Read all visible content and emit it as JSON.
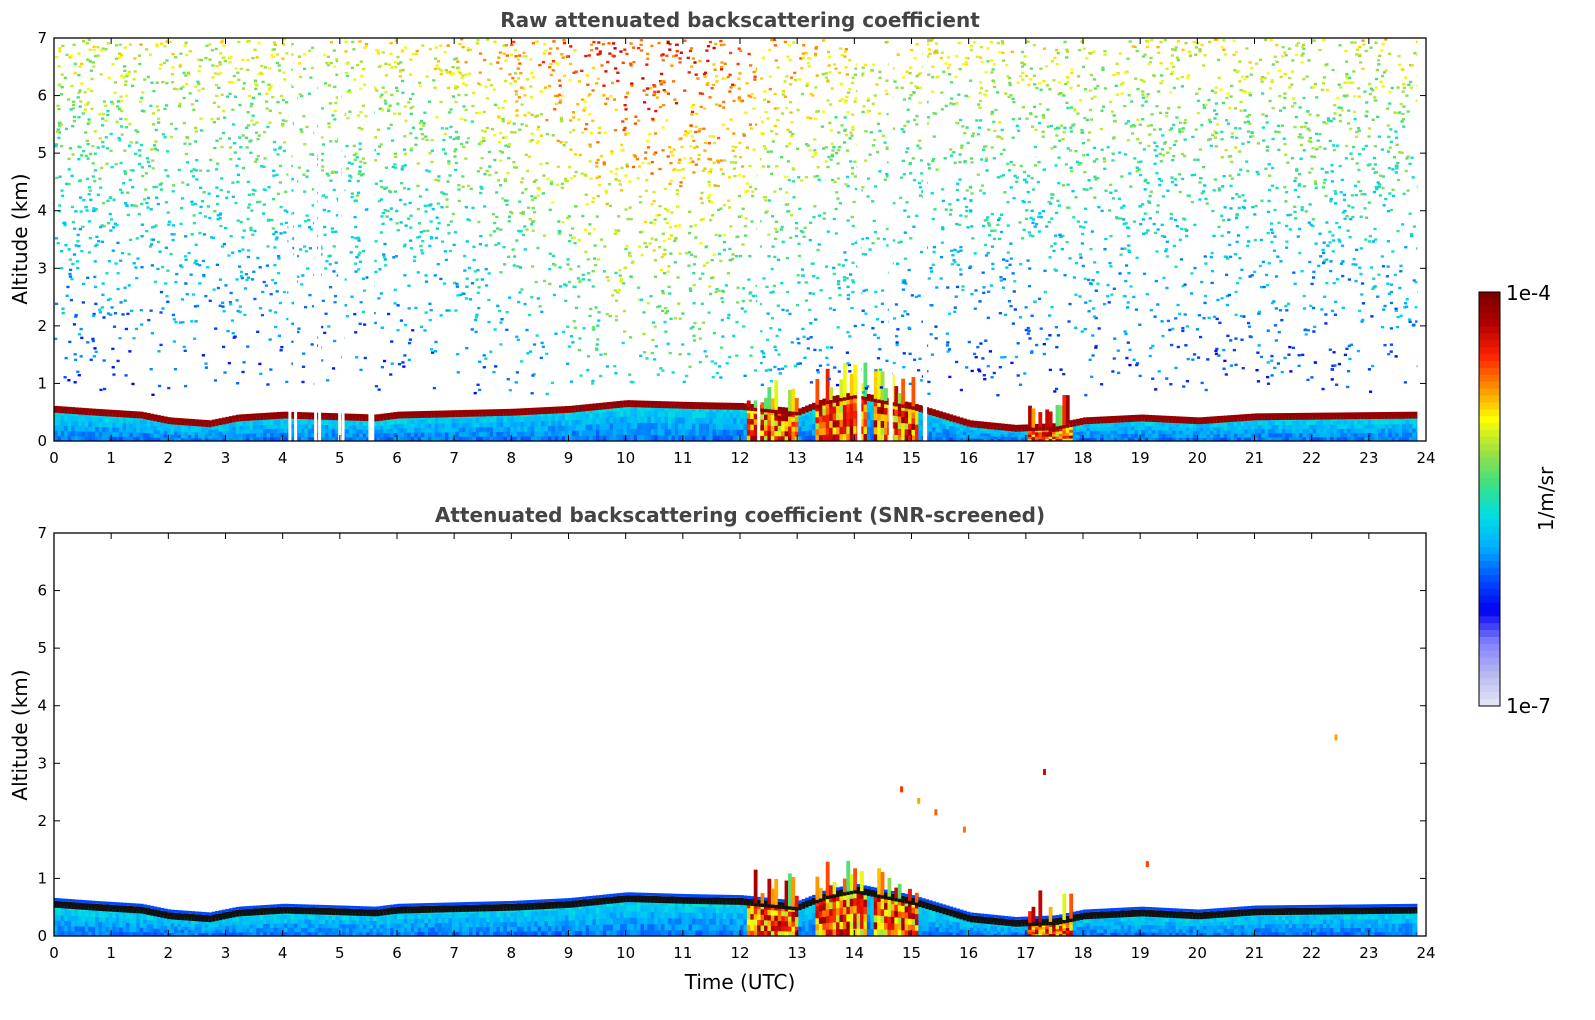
{
  "colors": {
    "colormap": [
      "#e8e8f8",
      "#b8b8f0",
      "#8080ff",
      "#0000f0",
      "#0050ff",
      "#00b0ff",
      "#00e0e0",
      "#40e080",
      "#a0e040",
      "#ffff00",
      "#ff9000",
      "#ff2000",
      "#b00000",
      "#7a0000"
    ]
  },
  "chart_data": [
    {
      "type": "heatmap",
      "title": "Raw attenuated backscattering coefficient",
      "xlabel": "",
      "ylabel": "Altitude (km)",
      "xlim": [
        0,
        24
      ],
      "ylim": [
        0,
        7
      ],
      "xticks": [
        0,
        1,
        2,
        3,
        4,
        5,
        6,
        7,
        8,
        9,
        10,
        11,
        12,
        13,
        14,
        15,
        16,
        17,
        18,
        19,
        20,
        21,
        22,
        23,
        24
      ],
      "yticks": [
        0,
        1,
        2,
        3,
        4,
        5,
        6,
        7
      ],
      "data_end_hour": 23.85,
      "gaps_hours": [
        4.1,
        4.2,
        4.55,
        4.62,
        4.97,
        5.03,
        5.5,
        5.52,
        5.55,
        12.3,
        14.05,
        14.07,
        14.6,
        14.62,
        15.2,
        15.22
      ],
      "boundary_layer_top_km": [
        [
          0,
          0.55
        ],
        [
          0.7,
          0.5
        ],
        [
          1.5,
          0.45
        ],
        [
          2.0,
          0.35
        ],
        [
          2.7,
          0.3
        ],
        [
          3.2,
          0.4
        ],
        [
          4.0,
          0.45
        ],
        [
          5.0,
          0.42
        ],
        [
          5.6,
          0.4
        ],
        [
          6.0,
          0.45
        ],
        [
          8.0,
          0.5
        ],
        [
          9.0,
          0.55
        ],
        [
          10.0,
          0.65
        ],
        [
          11.0,
          0.62
        ],
        [
          12.0,
          0.6
        ],
        [
          12.5,
          0.55
        ],
        [
          13.0,
          0.5
        ],
        [
          13.5,
          0.7
        ],
        [
          14.0,
          0.8
        ],
        [
          15.0,
          0.6
        ],
        [
          15.5,
          0.45
        ],
        [
          16.0,
          0.3
        ],
        [
          16.8,
          0.22
        ],
        [
          17.5,
          0.25
        ],
        [
          18.0,
          0.35
        ],
        [
          19.0,
          0.4
        ],
        [
          20.0,
          0.35
        ],
        [
          21.0,
          0.42
        ],
        [
          23.85,
          0.45
        ]
      ],
      "dense_aerosol_hours": [
        [
          12.1,
          13.0
        ],
        [
          13.3,
          14.2
        ],
        [
          14.3,
          15.1
        ],
        [
          17.0,
          17.8
        ]
      ]
    },
    {
      "type": "heatmap",
      "title": "Attenuated backscattering coefficient (SNR-screened)",
      "xlabel": "Time (UTC)",
      "ylabel": "Altitude (km)",
      "xlim": [
        0,
        24
      ],
      "ylim": [
        0,
        7
      ],
      "xticks": [
        0,
        1,
        2,
        3,
        4,
        5,
        6,
        7,
        8,
        9,
        10,
        11,
        12,
        13,
        14,
        15,
        16,
        17,
        18,
        19,
        20,
        21,
        22,
        23,
        24
      ],
      "yticks": [
        0,
        1,
        2,
        3,
        4,
        5,
        6,
        7
      ],
      "isolated_features": [
        [
          14.8,
          2.6
        ],
        [
          15.1,
          2.4
        ],
        [
          15.4,
          2.2
        ],
        [
          15.9,
          1.9
        ],
        [
          17.3,
          2.9
        ],
        [
          22.4,
          3.5
        ],
        [
          19.1,
          1.3
        ]
      ]
    }
  ],
  "colorbar": {
    "max_label": "1e-4",
    "min_label": "1e-7",
    "unit_label": "1/m/sr"
  }
}
